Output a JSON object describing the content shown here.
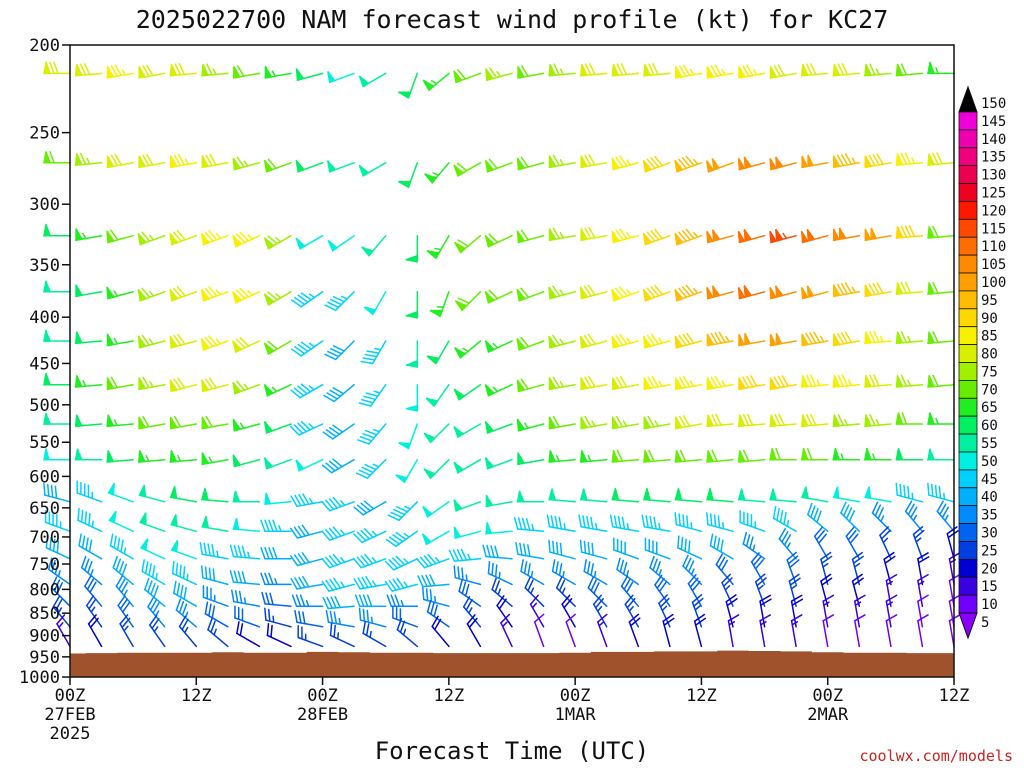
{
  "chart_data": {
    "type": "wind-barb",
    "title": "2025022700 NAM forecast wind profile (kt) for KC27",
    "xlabel": "Forecast Time (UTC)",
    "ylabel": "",
    "credit": "coolwx.com/models",
    "y_scale": "log",
    "ylim": [
      1000,
      200
    ],
    "y_ticks": [
      "200",
      "250",
      "300",
      "350",
      "400",
      "450",
      "500",
      "550",
      "600",
      "650",
      "700",
      "750",
      "800",
      "850",
      "900",
      "950",
      "1000"
    ],
    "x_range_hours": [
      0,
      84
    ],
    "x_ticks": [
      {
        "hour": 0,
        "lines": [
          "00Z",
          "27FEB",
          "2025"
        ]
      },
      {
        "hour": 12,
        "lines": [
          "12Z"
        ]
      },
      {
        "hour": 24,
        "lines": [
          "00Z",
          "28FEB"
        ]
      },
      {
        "hour": 36,
        "lines": [
          "12Z"
        ]
      },
      {
        "hour": 48,
        "lines": [
          "00Z",
          "1MAR"
        ]
      },
      {
        "hour": 60,
        "lines": [
          "12Z"
        ]
      },
      {
        "hour": 72,
        "lines": [
          "00Z",
          "2MAR"
        ]
      },
      {
        "hour": 84,
        "lines": [
          "12Z"
        ]
      }
    ],
    "levels_hpa": [
      215,
      270,
      325,
      375,
      425,
      475,
      525,
      575,
      640,
      690,
      740,
      790,
      835,
      880,
      925
    ],
    "hours": [
      0,
      3,
      6,
      9,
      12,
      15,
      18,
      21,
      24,
      27,
      30,
      33,
      36,
      39,
      42,
      45,
      48,
      51,
      54,
      57,
      60,
      63,
      66,
      69,
      72,
      75,
      78,
      81,
      84
    ],
    "wind_direction_deg": [
      [
        270,
        265,
        260,
        260,
        265,
        265,
        260,
        260,
        255,
        250,
        240,
        200,
        230,
        250,
        255,
        260,
        265,
        265,
        265,
        265,
        260,
        260,
        260,
        260,
        265,
        265,
        265,
        265,
        270
      ],
      [
        270,
        265,
        260,
        260,
        260,
        260,
        255,
        250,
        250,
        250,
        240,
        200,
        220,
        240,
        250,
        255,
        260,
        260,
        255,
        250,
        250,
        250,
        255,
        255,
        260,
        260,
        260,
        265,
        265
      ],
      [
        270,
        260,
        255,
        250,
        250,
        250,
        245,
        240,
        240,
        235,
        220,
        180,
        210,
        230,
        245,
        255,
        260,
        260,
        255,
        250,
        250,
        255,
        255,
        255,
        255,
        260,
        260,
        265,
        265
      ],
      [
        270,
        260,
        255,
        250,
        250,
        250,
        245,
        240,
        235,
        225,
        210,
        180,
        200,
        225,
        245,
        250,
        255,
        255,
        250,
        250,
        250,
        255,
        255,
        255,
        255,
        260,
        260,
        265,
        265
      ],
      [
        270,
        265,
        260,
        255,
        255,
        250,
        245,
        240,
        235,
        225,
        210,
        180,
        210,
        230,
        245,
        250,
        255,
        255,
        255,
        255,
        255,
        260,
        260,
        260,
        260,
        260,
        265,
        265,
        265
      ],
      [
        270,
        265,
        260,
        260,
        255,
        255,
        250,
        245,
        240,
        230,
        215,
        180,
        215,
        235,
        245,
        255,
        260,
        260,
        260,
        260,
        260,
        260,
        260,
        260,
        265,
        265,
        265,
        265,
        265
      ],
      [
        270,
        265,
        265,
        260,
        260,
        260,
        255,
        250,
        245,
        235,
        220,
        200,
        225,
        240,
        250,
        255,
        260,
        260,
        260,
        260,
        260,
        265,
        265,
        265,
        265,
        265,
        265,
        270,
        270
      ],
      [
        270,
        270,
        265,
        265,
        265,
        260,
        255,
        250,
        245,
        240,
        225,
        210,
        225,
        240,
        250,
        260,
        265,
        265,
        265,
        265,
        265,
        265,
        265,
        270,
        270,
        270,
        270,
        270,
        270
      ],
      [
        285,
        290,
        290,
        285,
        280,
        275,
        270,
        265,
        260,
        250,
        240,
        225,
        235,
        250,
        260,
        270,
        275,
        275,
        275,
        275,
        275,
        275,
        275,
        275,
        280,
        280,
        280,
        285,
        285
      ],
      [
        290,
        295,
        295,
        290,
        285,
        280,
        275,
        270,
        255,
        250,
        245,
        235,
        240,
        255,
        265,
        275,
        280,
        280,
        280,
        280,
        285,
        285,
        290,
        300,
        310,
        315,
        315,
        320,
        320
      ],
      [
        295,
        300,
        300,
        295,
        290,
        280,
        275,
        270,
        255,
        250,
        250,
        245,
        250,
        265,
        275,
        280,
        285,
        285,
        290,
        290,
        295,
        300,
        305,
        320,
        330,
        330,
        335,
        340,
        345
      ],
      [
        305,
        310,
        310,
        300,
        295,
        285,
        275,
        270,
        260,
        255,
        260,
        255,
        265,
        285,
        295,
        300,
        300,
        300,
        305,
        310,
        315,
        320,
        330,
        340,
        345,
        345,
        345,
        350,
        350
      ],
      [
        315,
        320,
        320,
        310,
        300,
        290,
        280,
        275,
        270,
        265,
        270,
        270,
        285,
        305,
        310,
        315,
        315,
        315,
        320,
        325,
        330,
        335,
        340,
        345,
        345,
        345,
        350,
        350,
        350
      ],
      [
        320,
        325,
        325,
        320,
        310,
        300,
        290,
        285,
        280,
        280,
        285,
        290,
        305,
        320,
        325,
        330,
        330,
        330,
        330,
        335,
        340,
        345,
        350,
        350,
        350,
        350,
        350,
        350,
        350
      ],
      [
        330,
        330,
        330,
        325,
        320,
        310,
        300,
        295,
        290,
        295,
        300,
        310,
        320,
        330,
        335,
        340,
        340,
        340,
        340,
        345,
        345,
        350,
        350,
        350,
        350,
        350,
        350,
        350,
        350
      ]
    ],
    "wind_speed_kt": [
      [
        80,
        80,
        85,
        80,
        80,
        75,
        70,
        65,
        60,
        50,
        55,
        60,
        65,
        70,
        75,
        70,
        75,
        80,
        80,
        80,
        85,
        85,
        85,
        80,
        80,
        80,
        75,
        70,
        65
      ],
      [
        70,
        75,
        80,
        80,
        85,
        80,
        75,
        70,
        60,
        55,
        55,
        60,
        65,
        70,
        70,
        70,
        75,
        80,
        85,
        90,
        95,
        100,
        105,
        105,
        100,
        95,
        90,
        85,
        80
      ],
      [
        60,
        65,
        70,
        75,
        80,
        85,
        85,
        75,
        50,
        50,
        55,
        60,
        65,
        70,
        70,
        70,
        75,
        80,
        85,
        90,
        95,
        105,
        110,
        115,
        110,
        105,
        100,
        90,
        70
      ],
      [
        55,
        60,
        65,
        75,
        80,
        85,
        85,
        75,
        45,
        45,
        50,
        60,
        65,
        70,
        70,
        70,
        75,
        80,
        85,
        90,
        95,
        105,
        110,
        105,
        100,
        95,
        90,
        80,
        70
      ],
      [
        55,
        60,
        65,
        75,
        80,
        85,
        80,
        70,
        45,
        40,
        45,
        55,
        60,
        65,
        65,
        70,
        75,
        80,
        85,
        85,
        90,
        95,
        100,
        100,
        95,
        90,
        85,
        75,
        70
      ],
      [
        60,
        65,
        70,
        75,
        80,
        80,
        75,
        65,
        45,
        40,
        45,
        50,
        55,
        60,
        65,
        70,
        75,
        80,
        80,
        85,
        85,
        85,
        90,
        90,
        85,
        85,
        80,
        75,
        70
      ],
      [
        55,
        60,
        65,
        70,
        70,
        70,
        65,
        60,
        45,
        40,
        45,
        50,
        55,
        55,
        60,
        65,
        70,
        75,
        75,
        75,
        80,
        80,
        80,
        80,
        80,
        75,
        75,
        70,
        65
      ],
      [
        50,
        55,
        60,
        65,
        65,
        65,
        60,
        55,
        50,
        40,
        45,
        50,
        55,
        55,
        55,
        60,
        65,
        65,
        70,
        70,
        70,
        70,
        70,
        70,
        70,
        65,
        65,
        60,
        55
      ],
      [
        40,
        45,
        50,
        55,
        60,
        60,
        55,
        50,
        45,
        45,
        40,
        45,
        50,
        55,
        55,
        55,
        55,
        55,
        60,
        60,
        60,
        60,
        55,
        55,
        55,
        50,
        50,
        45,
        45
      ],
      [
        45,
        45,
        50,
        55,
        55,
        55,
        50,
        45,
        40,
        45,
        45,
        45,
        50,
        50,
        50,
        45,
        45,
        45,
        45,
        45,
        45,
        45,
        45,
        45,
        40,
        40,
        35,
        35,
        35
      ],
      [
        40,
        40,
        45,
        50,
        50,
        45,
        45,
        40,
        40,
        45,
        45,
        45,
        45,
        45,
        40,
        40,
        40,
        40,
        40,
        40,
        40,
        40,
        35,
        35,
        30,
        30,
        25,
        25,
        20
      ],
      [
        35,
        35,
        40,
        45,
        45,
        40,
        40,
        35,
        40,
        45,
        45,
        45,
        40,
        35,
        35,
        35,
        35,
        35,
        35,
        35,
        35,
        30,
        30,
        30,
        25,
        25,
        20,
        20,
        15
      ],
      [
        30,
        30,
        35,
        40,
        40,
        35,
        35,
        30,
        35,
        40,
        40,
        35,
        35,
        30,
        25,
        25,
        25,
        30,
        30,
        30,
        30,
        25,
        25,
        25,
        20,
        20,
        15,
        15,
        10
      ],
      [
        25,
        25,
        30,
        35,
        35,
        30,
        30,
        25,
        30,
        35,
        35,
        30,
        30,
        25,
        20,
        15,
        20,
        25,
        25,
        25,
        25,
        20,
        20,
        20,
        15,
        15,
        15,
        10,
        10
      ],
      [
        15,
        20,
        25,
        25,
        25,
        25,
        20,
        20,
        25,
        25,
        25,
        25,
        20,
        20,
        15,
        10,
        10,
        15,
        20,
        20,
        20,
        15,
        15,
        15,
        10,
        10,
        10,
        10,
        10
      ]
    ],
    "surface_pressure_hpa": [
      942,
      941,
      940,
      940,
      940,
      939,
      940,
      940,
      938,
      939,
      940,
      940,
      941,
      941,
      941,
      941,
      940,
      938,
      938,
      937,
      937,
      935,
      936,
      937,
      939,
      940,
      940,
      941,
      941
    ],
    "colorbar": {
      "min": 5,
      "max": 150,
      "step": 5,
      "labels": [
        "150",
        "145",
        "140",
        "135",
        "130",
        "125",
        "120",
        "115",
        "110",
        "105",
        "100",
        "95",
        "90",
        "85",
        "80",
        "75",
        "70",
        "65",
        "60",
        "55",
        "50",
        "45",
        "40",
        "35",
        "30",
        "25",
        "20",
        "15",
        "10",
        "5"
      ],
      "colors": {
        "5": "#8a00ff",
        "10": "#6f00ff",
        "15": "#3a00e0",
        "20": "#0000d0",
        "25": "#0040e0",
        "30": "#0064f0",
        "35": "#008cff",
        "40": "#00b0ff",
        "45": "#00d0ff",
        "50": "#00f0e0",
        "55": "#00f0a0",
        "60": "#00ee60",
        "65": "#20ee20",
        "70": "#66ee00",
        "75": "#a0f000",
        "80": "#d8f000",
        "85": "#f8f000",
        "90": "#ffd800",
        "95": "#ffbc00",
        "100": "#ffa000",
        "105": "#ff8a00",
        "110": "#ff6e00",
        "115": "#ff4800",
        "120": "#ff1800",
        "125": "#ee0020",
        "130": "#ee0050",
        "135": "#ee0080",
        "140": "#ee00b0",
        "145": "#ee00d8",
        "150": "#ff00ff"
      }
    },
    "terrain_color": "#a0522d",
    "grid": false
  }
}
